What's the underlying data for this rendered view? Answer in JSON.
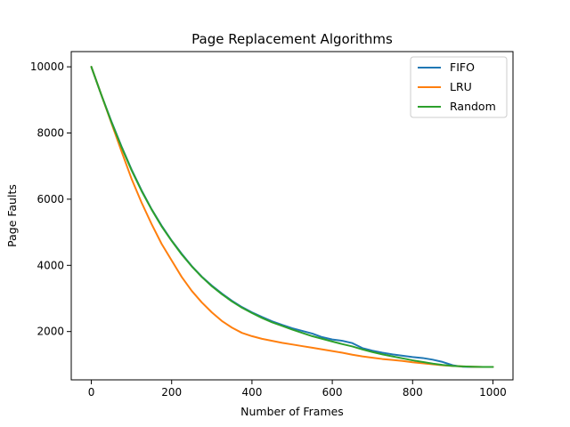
{
  "chart_data": {
    "type": "line",
    "title": "Page Replacement Algorithms",
    "xlabel": "Number of Frames",
    "ylabel": "Page Faults",
    "xlim": [
      -50,
      1050
    ],
    "ylim": [
      540,
      10460
    ],
    "xticks": [
      0,
      200,
      400,
      600,
      800,
      1000
    ],
    "yticks": [
      2000,
      4000,
      6000,
      8000,
      10000
    ],
    "grid": false,
    "legend_position": "top-right",
    "series": [
      {
        "name": "FIFO",
        "color": "#1f77b4",
        "x": [
          0,
          25,
          50,
          75,
          100,
          125,
          150,
          175,
          200,
          225,
          250,
          275,
          300,
          325,
          350,
          375,
          400,
          425,
          450,
          475,
          500,
          525,
          550,
          575,
          600,
          625,
          650,
          675,
          700,
          725,
          750,
          775,
          800,
          825,
          850,
          875,
          900,
          925,
          950,
          975,
          1000
        ],
        "values": [
          10000,
          9150,
          8350,
          7600,
          6900,
          6270,
          5700,
          5200,
          4750,
          4350,
          3980,
          3660,
          3390,
          3150,
          2930,
          2740,
          2580,
          2440,
          2310,
          2200,
          2100,
          2020,
          1940,
          1830,
          1760,
          1720,
          1650,
          1500,
          1420,
          1360,
          1310,
          1270,
          1230,
          1200,
          1150,
          1080,
          980,
          935,
          930,
          930,
          930
        ]
      },
      {
        "name": "LRU",
        "color": "#ff7f0e",
        "x": [
          0,
          25,
          50,
          75,
          100,
          125,
          150,
          175,
          200,
          225,
          250,
          275,
          300,
          325,
          350,
          375,
          400,
          425,
          450,
          475,
          500,
          525,
          550,
          575,
          600,
          625,
          650,
          675,
          700,
          725,
          750,
          775,
          800,
          825,
          850,
          875,
          900,
          925,
          950,
          975,
          1000
        ],
        "values": [
          10000,
          9150,
          8300,
          7450,
          6620,
          5900,
          5250,
          4650,
          4150,
          3650,
          3230,
          2880,
          2580,
          2320,
          2120,
          1960,
          1860,
          1780,
          1720,
          1660,
          1610,
          1560,
          1510,
          1460,
          1410,
          1360,
          1300,
          1250,
          1210,
          1170,
          1140,
          1110,
          1070,
          1040,
          1010,
          980,
          960,
          945,
          935,
          930,
          930
        ]
      },
      {
        "name": "Random",
        "color": "#2ca02c",
        "x": [
          0,
          25,
          50,
          75,
          100,
          125,
          150,
          175,
          200,
          225,
          250,
          275,
          300,
          325,
          350,
          375,
          400,
          425,
          450,
          475,
          500,
          525,
          550,
          575,
          600,
          625,
          650,
          675,
          700,
          725,
          750,
          775,
          800,
          825,
          850,
          875,
          900,
          925,
          950,
          975,
          1000
        ],
        "values": [
          10000,
          9150,
          8330,
          7580,
          6880,
          6250,
          5690,
          5180,
          4740,
          4330,
          3970,
          3650,
          3370,
          3130,
          2910,
          2720,
          2560,
          2410,
          2280,
          2170,
          2060,
          1960,
          1860,
          1780,
          1700,
          1620,
          1550,
          1460,
          1380,
          1310,
          1250,
          1190,
          1130,
          1080,
          1030,
          990,
          960,
          945,
          935,
          930,
          930
        ]
      }
    ]
  }
}
